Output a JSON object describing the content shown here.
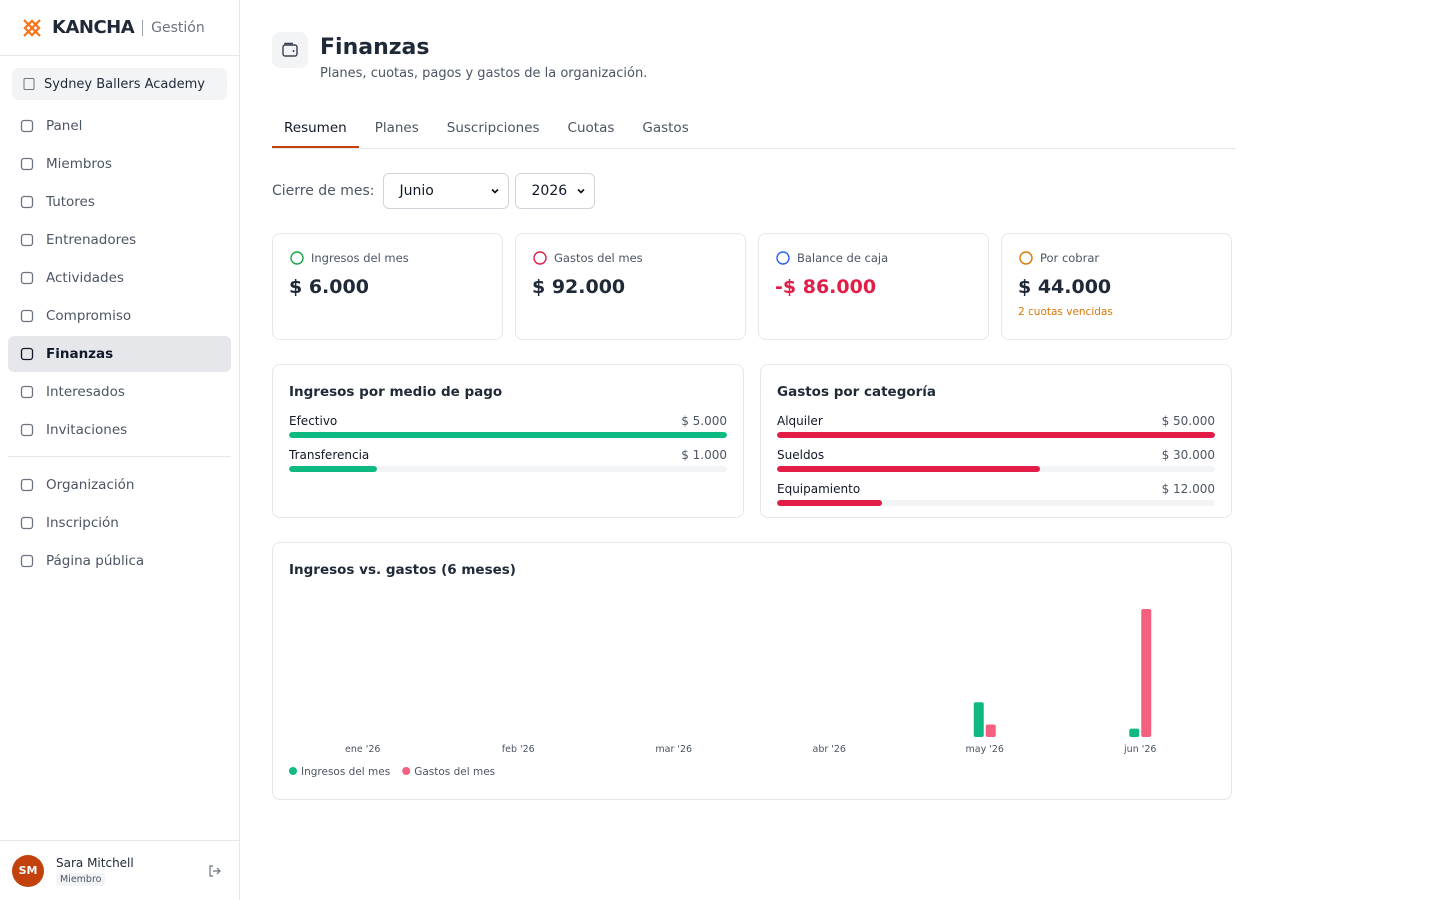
{
  "brand": {
    "name": "KANCHA",
    "section": "Gestión"
  },
  "organization": "Sydney Ballers Academy",
  "nav": [
    {
      "label": "Panel"
    },
    {
      "label": "Miembros"
    },
    {
      "label": "Tutores"
    },
    {
      "label": "Entrenadores"
    },
    {
      "label": "Actividades"
    },
    {
      "label": "Compromiso"
    },
    {
      "label": "Finanzas",
      "active": true
    },
    {
      "label": "Interesados"
    },
    {
      "label": "Invitaciones"
    }
  ],
  "nav_secondary": [
    {
      "label": "Organización"
    },
    {
      "label": "Inscripción"
    },
    {
      "label": "Página pública"
    }
  ],
  "user": {
    "initials": "SM",
    "name": "Sara Mitchell",
    "role": "Miembro"
  },
  "header": {
    "title": "Finanzas",
    "subtitle": "Planes, cuotas, pagos y gastos de la organización."
  },
  "tabs": [
    {
      "label": "Resumen",
      "active": true
    },
    {
      "label": "Planes"
    },
    {
      "label": "Suscripciones"
    },
    {
      "label": "Cuotas"
    },
    {
      "label": "Gastos"
    }
  ],
  "filter": {
    "label": "Cierre de mes:",
    "month": "Junio",
    "year": "2026"
  },
  "kpis": [
    {
      "label": "Ingresos del mes",
      "value": "$ 6.000",
      "icon_color": "#16a34a"
    },
    {
      "label": "Gastos del mes",
      "value": "$ 92.000",
      "icon_color": "#e11d48"
    },
    {
      "label": "Balance de caja",
      "value": "-$ 86.000",
      "icon_color": "#2563eb",
      "value_color": "#e11d48"
    },
    {
      "label": "Por cobrar",
      "value": "$ 44.000",
      "icon_color": "#d97706",
      "note": "2 cuotas vencidas"
    }
  ],
  "breakdowns": [
    {
      "title": "Ingresos por medio de pago",
      "color": "#10b981",
      "categories": [
        "Efectivo",
        "Transferencia"
      ],
      "values": [
        5000,
        1000
      ],
      "value_labels": [
        "$ 5.000",
        "$ 1.000"
      ]
    },
    {
      "title": "Gastos por categoría",
      "color": "#e11d48",
      "categories": [
        "Alquiler",
        "Sueldos",
        "Equipamiento"
      ],
      "values": [
        50000,
        30000,
        12000
      ],
      "value_labels": [
        "$ 50.000",
        "$ 30.000",
        "$ 12.000"
      ]
    }
  ],
  "chart_data": {
    "type": "bar",
    "title": "Ingresos vs. gastos (6 meses)",
    "categories": [
      "ene '26",
      "feb '26",
      "mar '26",
      "abr '26",
      "may '26",
      "jun '26"
    ],
    "series": [
      {
        "name": "Ingresos del mes",
        "color": "#10b981",
        "values": [
          0,
          0,
          0,
          0,
          25000,
          6000
        ]
      },
      {
        "name": "Gastos del mes",
        "color": "#f4607f",
        "values": [
          0,
          0,
          0,
          0,
          9000,
          92000
        ]
      }
    ]
  }
}
